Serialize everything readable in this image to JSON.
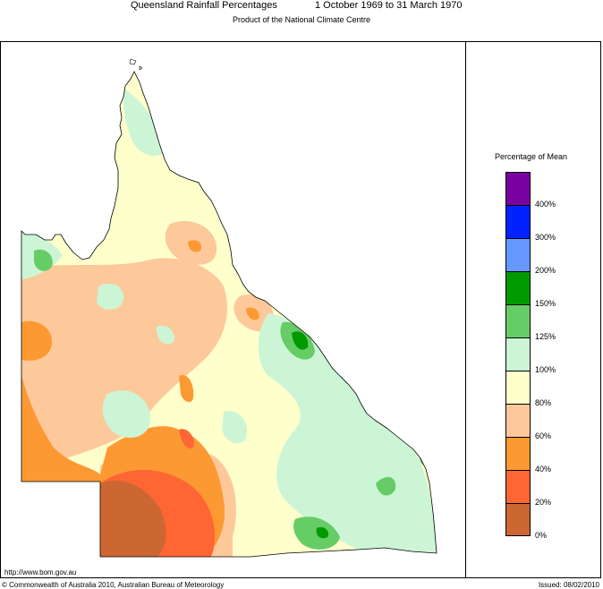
{
  "header": {
    "title": "Queensland Rainfall Percentages",
    "period": "1 October 1969 to 31 March 1970",
    "subtitle": "Product of the National Climate Centre"
  },
  "legend": {
    "title": "Percentage of Mean",
    "bins": [
      {
        "label": "400%",
        "color": "#7a00a0"
      },
      {
        "label": "300%",
        "color": "#0022ff"
      },
      {
        "label": "200%",
        "color": "#6699ff"
      },
      {
        "label": "150%",
        "color": "#009900"
      },
      {
        "label": "125%",
        "color": "#66cc66"
      },
      {
        "label": "100%",
        "color": "#ccf5d6"
      },
      {
        "label": "80%",
        "color": "#ffffcc"
      },
      {
        "label": "60%",
        "color": "#fdc99a"
      },
      {
        "label": "40%",
        "color": "#fd9933"
      },
      {
        "label": "20%",
        "color": "#ff6633"
      },
      {
        "label": "0%",
        "color": "#cc6633"
      }
    ]
  },
  "footer": {
    "url": "http://www.bom.gov.au",
    "copyright": "© Commonwealth of Australia 2010, Australian Bureau of Meteorology",
    "issued": "Issued: 08/02/2010"
  }
}
